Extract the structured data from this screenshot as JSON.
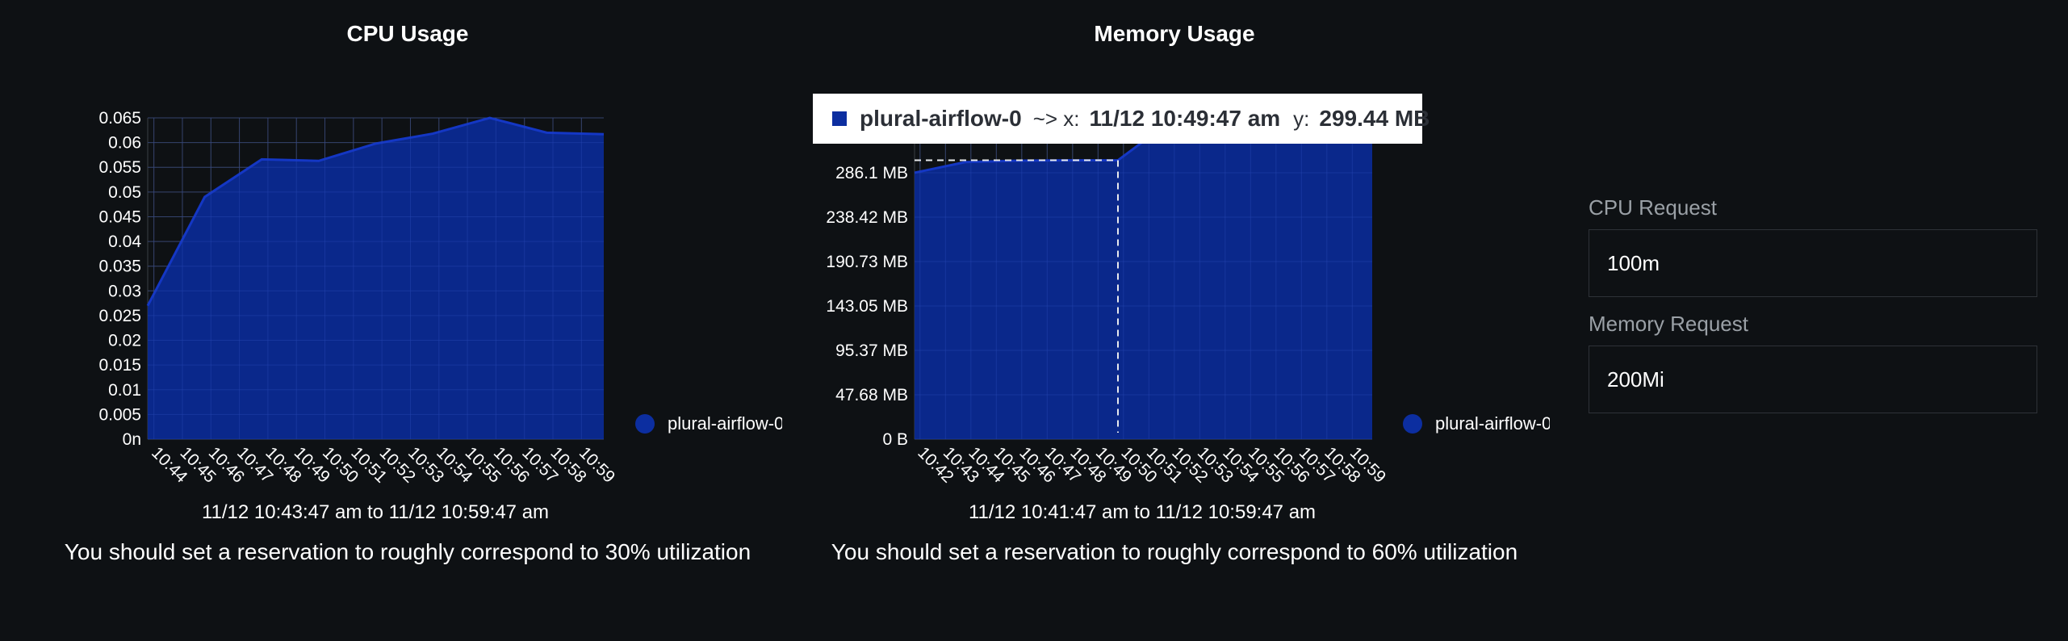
{
  "cpu_panel": {
    "title": "CPU Usage",
    "legend_label": "plural-airflow-0",
    "range_text": "11/12 10:43:47 am to 11/12 10:59:47 am",
    "hint": "You should set a reservation to roughly correspond to 30% utilization"
  },
  "memory_panel": {
    "title": "Memory Usage",
    "legend_label": "plural-airflow-0",
    "range_text": "11/12 10:41:47 am to 11/12 10:59:47 am",
    "hint": "You should set a reservation to roughly correspond to 60% utilization",
    "tooltip": {
      "series": "plural-airflow-0",
      "x_key": "~> x:",
      "x_value": "11/12 10:49:47 am",
      "y_key": "y:",
      "y_value": "299.44 MB"
    }
  },
  "resources": {
    "cpu_request_label": "CPU Request",
    "cpu_request_value": "100m",
    "memory_request_label": "Memory Request",
    "memory_request_value": "200Mi"
  },
  "colors": {
    "background": "#0e1114",
    "area_fill": "#0a2a96",
    "area_line": "#1437c4",
    "grid": "#3a3e44"
  },
  "chart_data": [
    {
      "type": "area",
      "title": "CPU Usage",
      "x": [
        "10:43:47",
        "10:44",
        "10:45",
        "10:46",
        "10:47",
        "10:48",
        "10:49",
        "10:50",
        "10:51",
        "10:52",
        "10:53",
        "10:54",
        "10:55",
        "10:56",
        "10:57",
        "10:58",
        "10:59",
        "10:59:47"
      ],
      "x_tick_labels": [
        "10:44",
        "10:45",
        "10:46",
        "10:47",
        "10:48",
        "10:49",
        "10:50",
        "10:51",
        "10:52",
        "10:53",
        "10:54",
        "10:55",
        "10:56",
        "10:57",
        "10:58",
        "10:59"
      ],
      "series": [
        {
          "name": "plural-airflow-0",
          "points": [
            [
              "10:43:47",
              0.027
            ],
            [
              "10:45:47",
              0.049
            ],
            [
              "10:47:47",
              0.0566
            ],
            [
              "10:49:47",
              0.0563
            ],
            [
              "10:51:47",
              0.0598
            ],
            [
              "10:53:47",
              0.0618
            ],
            [
              "10:55:47",
              0.065
            ],
            [
              "10:57:47",
              0.062
            ],
            [
              "10:59:47",
              0.0617
            ]
          ]
        }
      ],
      "y_ticks": [
        "0n",
        "0.005",
        "0.01",
        "0.015",
        "0.02",
        "0.025",
        "0.03",
        "0.035",
        "0.04",
        "0.045",
        "0.05",
        "0.055",
        "0.06",
        "0.065"
      ],
      "ylim": [
        0,
        0.065
      ],
      "grid": true,
      "legend": "right"
    },
    {
      "type": "area",
      "title": "Memory Usage",
      "x_tick_labels": [
        "10:42",
        "10:43",
        "10:44",
        "10:45",
        "10:46",
        "10:47",
        "10:48",
        "10:49",
        "10:50",
        "10:51",
        "10:52",
        "10:53",
        "10:54",
        "10:55",
        "10:56",
        "10:57",
        "10:58",
        "10:59"
      ],
      "series": [
        {
          "name": "plural-airflow-0",
          "points": [
            [
              "10:41:47",
              286.1
            ],
            [
              "10:43:47",
              297.5
            ],
            [
              "10:45:47",
              299.0
            ],
            [
              "10:47:47",
              299.4
            ],
            [
              "10:49:47",
              299.44
            ],
            [
              "10:51:47",
              340
            ],
            [
              "10:53:47",
              345
            ],
            [
              "10:55:47",
              345
            ],
            [
              "10:57:47",
              345
            ],
            [
              "10:59:47",
              345
            ]
          ]
        }
      ],
      "y_ticks": [
        "0 B",
        "47.68 MB",
        "95.37 MB",
        "143.05 MB",
        "190.73 MB",
        "238.42 MB",
        "286.1 MB"
      ],
      "y_tick_values": [
        0,
        47.68,
        95.37,
        143.05,
        190.73,
        238.42,
        286.1
      ],
      "grid": true,
      "legend": "right",
      "crosshair_x": "10:49:47"
    }
  ]
}
